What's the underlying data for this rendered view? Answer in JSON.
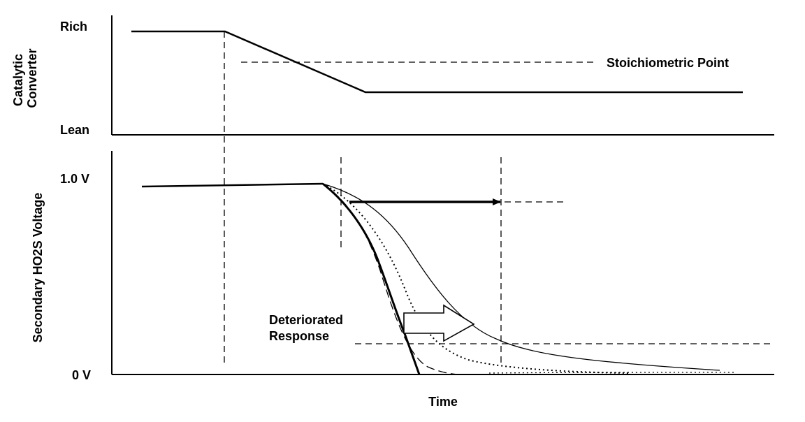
{
  "upper_panel": {
    "y_axis_title": [
      "Catalytic",
      "Converter"
    ],
    "rich_label": "Rich",
    "lean_label": "Lean",
    "stoichiometric_label": "Stoichiometric Point"
  },
  "lower_panel": {
    "y_axis_title": "Secondary HO2S Voltage",
    "tick_high": "1.0 V",
    "tick_low": "0 V",
    "deteriorated_label": [
      "Deteriorated",
      "Response"
    ],
    "x_axis_title": "Time"
  },
  "colors": {
    "ink": "#000000",
    "background": "#ffffff"
  }
}
